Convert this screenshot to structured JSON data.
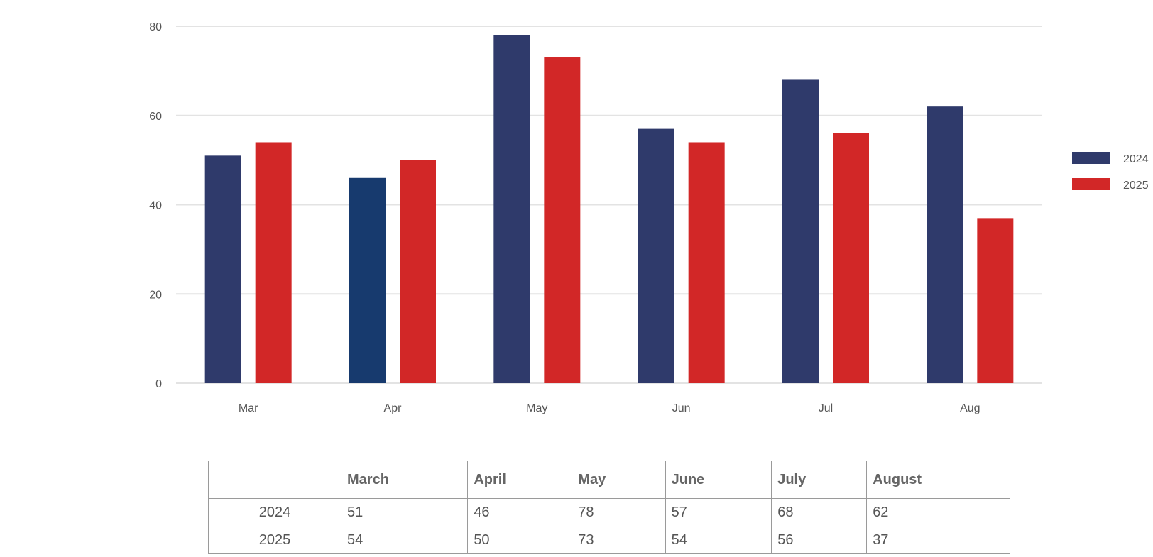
{
  "chart_data": {
    "type": "bar",
    "categories": [
      "Mar",
      "Apr",
      "May",
      "Jun",
      "Jul",
      "Aug"
    ],
    "series": [
      {
        "name": "2024",
        "values": [
          51,
          46,
          78,
          57,
          68,
          62
        ],
        "color": "#2f3a6b"
      },
      {
        "name": "2025",
        "values": [
          54,
          50,
          73,
          54,
          56,
          37
        ],
        "color": "#d22727"
      }
    ],
    "highlight_color": "#173a6e",
    "ylim": [
      0,
      80
    ],
    "yticks": [
      0,
      20,
      40,
      60,
      80
    ],
    "grid": true,
    "legend": "right",
    "gridline_color": "#e3e3e3"
  },
  "table": {
    "headers": [
      "",
      "March",
      "April",
      "May",
      "June",
      "July",
      "August"
    ],
    "rows": [
      {
        "label": "2024",
        "values": [
          "51",
          "46",
          "78",
          "57",
          "68",
          "62"
        ]
      },
      {
        "label": "2025",
        "values": [
          "54",
          "50",
          "73",
          "54",
          "56",
          "37"
        ]
      }
    ]
  }
}
